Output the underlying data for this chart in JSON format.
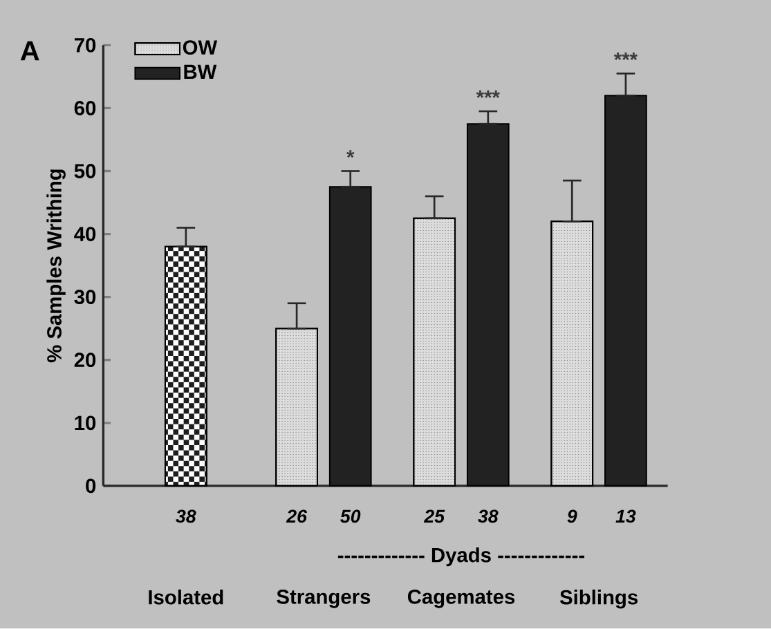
{
  "chart_data": {
    "type": "bar",
    "ylabel": "% Samples Writhing",
    "categories": [
      "Isolated",
      "Strangers",
      "Cagemates",
      "Siblings"
    ],
    "series": [
      {
        "color": "#1e1e1e",
        "values": [
          38,
          null,
          null,
          null
        ],
        "errors": [
          [
            38,
            41
          ],
          null,
          null,
          null
        ]
      },
      {
        "name": "OW",
        "color": "#dcdcdc",
        "values": [
          null,
          25,
          42.5,
          42
        ],
        "errors": [
          null,
          [
            25,
            29
          ],
          [
            42.5,
            46
          ],
          [
            42,
            48.5
          ]
        ]
      },
      {
        "name": "BW",
        "color": "#222222",
        "values": [
          null,
          47.5,
          57.5,
          62
        ],
        "errors": [
          null,
          [
            47.5,
            50
          ],
          [
            57.5,
            59.5
          ],
          [
            62,
            65.5
          ]
        ]
      }
    ],
    "ylim": [
      0,
      70
    ],
    "yticks": [
      0,
      10,
      20,
      30,
      40,
      50,
      60,
      70
    ],
    "legend": "top left",
    "annotations": [
      "A",
      "------------- Dyads -------------",
      "38",
      "26",
      "50",
      "25",
      "38",
      "9",
      "13",
      "*",
      "***",
      "***"
    ]
  }
}
